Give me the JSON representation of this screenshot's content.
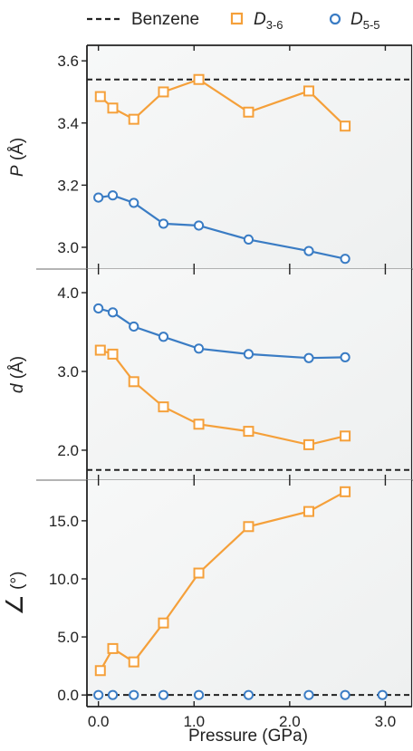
{
  "colors": {
    "orange": "#F5A03A",
    "blue": "#3A7CC4",
    "benzene": "#222222",
    "axis": "#222222",
    "separator": "#888888",
    "panel_bg": "#F4F5F5"
  },
  "legend": {
    "benzene_label": "Benzene",
    "d36_main": "D",
    "d36_sub": "3-6",
    "d55_main": "D",
    "d55_sub": "5-5"
  },
  "chart_data": [
    {
      "type": "line",
      "panel": "top",
      "title": "",
      "xlabel": "",
      "ylabel_var": "P",
      "ylabel_unit": " (Å)",
      "x_ticks": [
        0.0,
        1.0,
        2.0,
        3.0
      ],
      "y_ticks": [
        3.0,
        3.2,
        3.4,
        3.6
      ],
      "y_tick_labels": [
        "3.0",
        "3.2",
        "3.4",
        "3.6"
      ],
      "ylim": [
        2.93,
        3.65
      ],
      "xlim": [
        -0.12,
        3.28
      ],
      "benzene": 3.54,
      "series": [
        {
          "name": "D3-6",
          "marker": "square",
          "color": "#F5A03A",
          "x": [
            0.02,
            0.15,
            0.37,
            0.68,
            1.05,
            1.57,
            2.2,
            2.58
          ],
          "y": [
            3.485,
            3.448,
            3.412,
            3.5,
            3.54,
            3.435,
            3.503,
            3.39
          ]
        },
        {
          "name": "D5-5",
          "marker": "circle",
          "color": "#3A7CC4",
          "x": [
            0.0,
            0.15,
            0.37,
            0.68,
            1.05,
            1.57,
            2.2,
            2.58
          ],
          "y": [
            3.16,
            3.167,
            3.143,
            3.076,
            3.07,
            3.025,
            2.988,
            2.963
          ]
        }
      ]
    },
    {
      "type": "line",
      "panel": "middle",
      "title": "",
      "xlabel": "",
      "ylabel_var": "d",
      "ylabel_unit": " (Å)",
      "x_ticks": [
        0.0,
        1.0,
        2.0,
        3.0
      ],
      "y_ticks": [
        2.0,
        3.0,
        4.0
      ],
      "y_tick_labels": [
        "2.0",
        "3.0",
        "4.0"
      ],
      "ylim": [
        1.62,
        4.3
      ],
      "xlim": [
        -0.12,
        3.28
      ],
      "benzene": 1.75,
      "series": [
        {
          "name": "D3-6",
          "marker": "square",
          "color": "#F5A03A",
          "x": [
            0.02,
            0.15,
            0.37,
            0.68,
            1.05,
            1.57,
            2.2,
            2.58
          ],
          "y": [
            3.27,
            3.22,
            2.87,
            2.55,
            2.33,
            2.24,
            2.07,
            2.18
          ]
        },
        {
          "name": "D5-5",
          "marker": "circle",
          "color": "#3A7CC4",
          "x": [
            0.0,
            0.15,
            0.37,
            0.68,
            1.05,
            1.57,
            2.2,
            2.58
          ],
          "y": [
            3.8,
            3.75,
            3.57,
            3.44,
            3.29,
            3.22,
            3.17,
            3.18
          ]
        }
      ]
    },
    {
      "type": "line",
      "panel": "bottom",
      "title": "",
      "xlabel": "Pressure (GPa)",
      "ylabel_var": "∠",
      "ylabel_unit": " (°)",
      "x_ticks": [
        0.0,
        1.0,
        2.0,
        3.0
      ],
      "x_tick_labels": [
        "0.0",
        "1.0",
        "2.0",
        "3.0"
      ],
      "y_ticks": [
        0.0,
        5.0,
        10.0,
        15.0
      ],
      "y_tick_labels": [
        "0.0",
        "5.0",
        "10.0",
        "15.0"
      ],
      "ylim": [
        -1.0,
        18.5
      ],
      "xlim": [
        -0.12,
        3.28
      ],
      "benzene": 0.0,
      "series": [
        {
          "name": "D3-6",
          "marker": "square",
          "color": "#F5A03A",
          "x": [
            0.02,
            0.15,
            0.37,
            0.68,
            1.05,
            1.57,
            2.2,
            2.58
          ],
          "y": [
            2.1,
            4.0,
            2.85,
            6.2,
            10.5,
            14.5,
            15.8,
            17.5
          ]
        },
        {
          "name": "D5-5",
          "marker": "circle",
          "color": "#3A7CC4",
          "x": [
            0.0,
            0.15,
            0.37,
            0.68,
            1.05,
            1.57,
            2.2,
            2.58,
            2.97
          ],
          "y": [
            0.0,
            0.0,
            0.0,
            0.0,
            0.0,
            0.0,
            0.0,
            0.0,
            0.0
          ]
        }
      ]
    }
  ]
}
